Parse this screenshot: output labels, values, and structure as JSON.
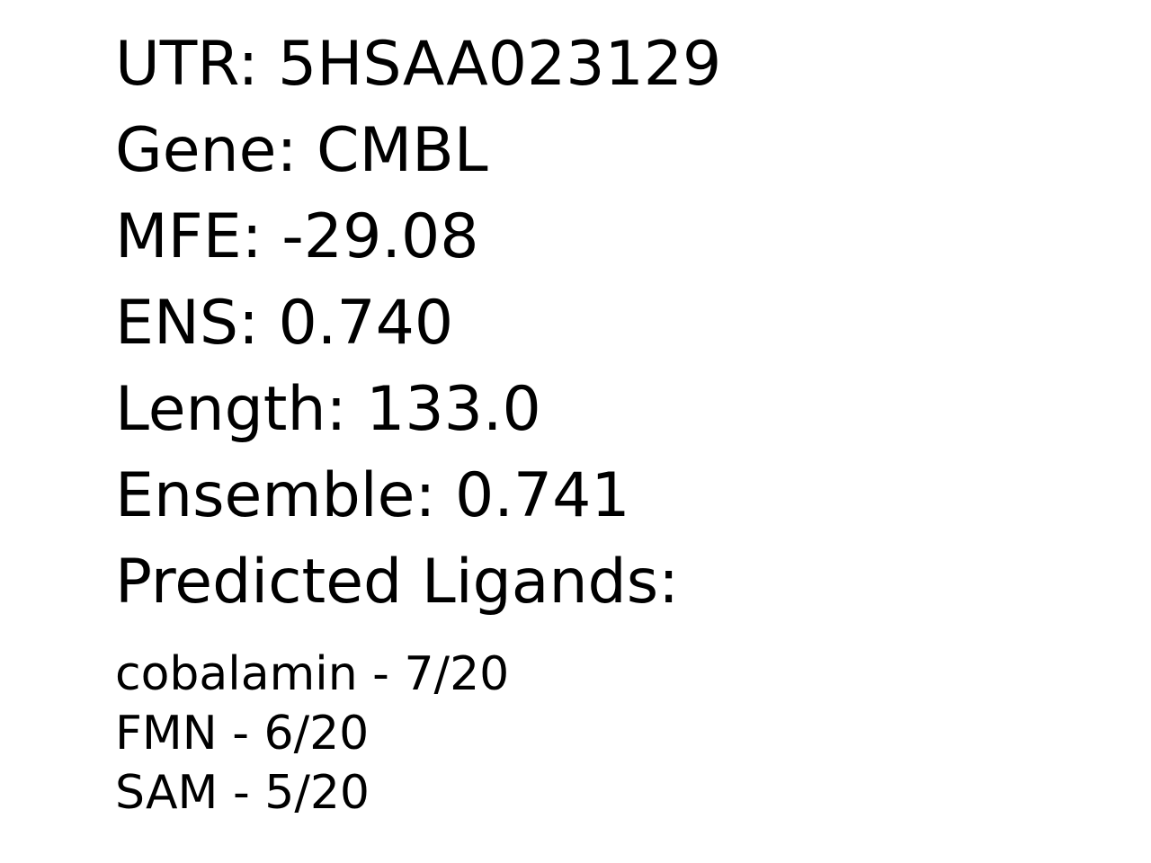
{
  "record": {
    "utr": "UTR: 5HSAA023129",
    "gene": "Gene: CMBL",
    "mfe": "MFE: -29.08",
    "ens": "ENS: 0.740",
    "length": "Length: 133.0",
    "ensemble": "Ensemble: 0.741",
    "ligands_heading": "Predicted Ligands:"
  },
  "ligands": [
    "cobalamin - 7/20",
    "FMN - 6/20",
    "SAM - 5/20"
  ]
}
